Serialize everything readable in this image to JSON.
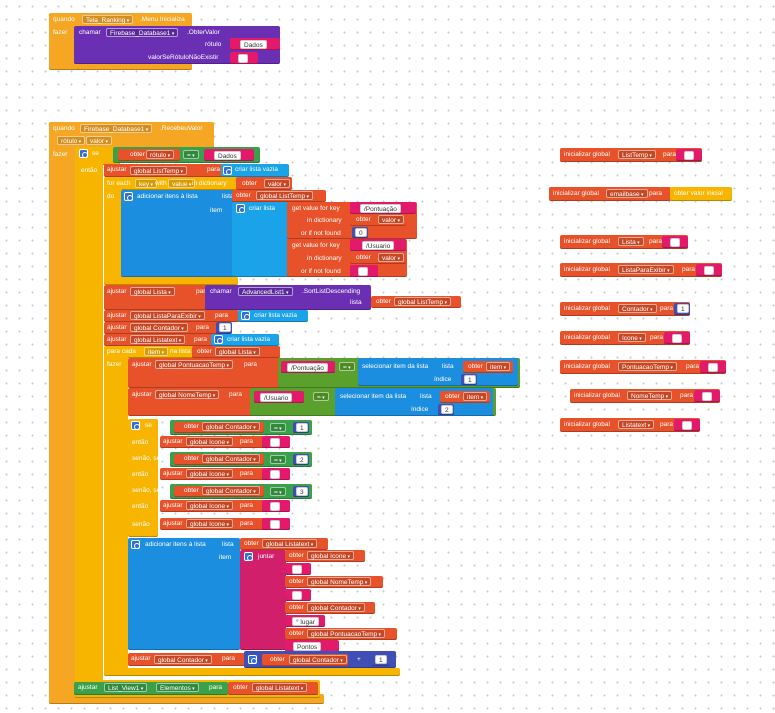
{
  "event1": {
    "when": "quando",
    "component": "Tela_Ranking",
    "event": ".Menu Inicializa",
    "do": "fazer",
    "call": "chamar",
    "db": "Firebase_Database1",
    "method": ".ObterValor",
    "tag_label": "rótulo",
    "tag_value": "Dados",
    "default_label": "valorSeRótuloNãoExistir",
    "default_value": ""
  },
  "event2": {
    "when": "quando",
    "component": "Firebase_Database1",
    "event": ".RecebeuValor",
    "param1": "rótulo",
    "param2": "valor",
    "do": "fazer",
    "if": "se",
    "get": "obter",
    "rotulo": "rótulo",
    "eq": "=",
    "dados": "Dados",
    "then": "então"
  },
  "blocks": {
    "set": "ajustar",
    "to": "para",
    "get": "obter",
    "global_ListTemp": "global ListTemp",
    "create_empty": "criar lista vazia",
    "for_each": "for each",
    "key": "key",
    "with": "with",
    "value": "value",
    "in_dictionary": "in dictionary",
    "valor": "valor",
    "do_label": "do",
    "add_items": "adicionar itens à lista",
    "lista": "lista",
    "item": "item",
    "create_list": "criar lista",
    "get_value_for_key": "get value for key",
    "in_dictionary2": "in dictionary",
    "or_if_not_found": "or if not found",
    "pontuacao_str": "/Pontuação",
    "usuario_str": "/Usuario",
    "zero": "0",
    "global_Lista": "global Lista",
    "call": "chamar",
    "advlist": "AdvancedList1",
    "sort": ".SortListDescending",
    "lista_param": "lista",
    "global_ListaParaExibir": "global ListaParaExibir",
    "global_Contador": "global Contador",
    "one": "1",
    "global_Listatext": "global Listatext",
    "for_each_item": "para cada",
    "item_var": "item",
    "in_list": "na lista",
    "fazer": "fazer",
    "global_PontuacaoTemp": "global PontuacaoTemp",
    "pontuacao_key": "/Pontuação",
    "select_item": "selecionar item da lista",
    "index": "índice",
    "item_get": "item",
    "global_NomeTemp": "global NomeTemp",
    "usuario_key": "/Usuario",
    "two": "2",
    "se": "se",
    "entao": "então",
    "senao_se": "senão, se",
    "senao": "senão",
    "global_Icone": "global Icone",
    "three": "3",
    "blank": "",
    "juntar": "juntar",
    "global_NomeTemp2": "global NomeTemp",
    "lugar": "° lugar",
    "pontos": "Pontos",
    "plus": "+",
    "plus_one": "1",
    "listview": "List_View1",
    "elementos": "Elementos"
  },
  "globals": {
    "init": "inicializar global",
    "to": "para",
    "ListTemp": "ListTemp",
    "emailbase": "emailbase",
    "get_start": "obter valor inicial",
    "Lista": "Lista",
    "ListaParaExibir": "ListaParaExibir",
    "Contador": "Contador",
    "contador_val": "1",
    "Icone": "Icone",
    "PontuacaoTemp": "PontuacaoTemp",
    "NomeTemp": "NomeTemp",
    "Listatext": "Listatext"
  },
  "colors": {
    "event": "#f5a623",
    "control": "#f8b500",
    "variables": "#e8522a",
    "lists": "#1aa3e8",
    "text": "#e3196c",
    "component": "#6b2fb3",
    "logic": "#3aa049",
    "math": "#3f4fb5"
  }
}
